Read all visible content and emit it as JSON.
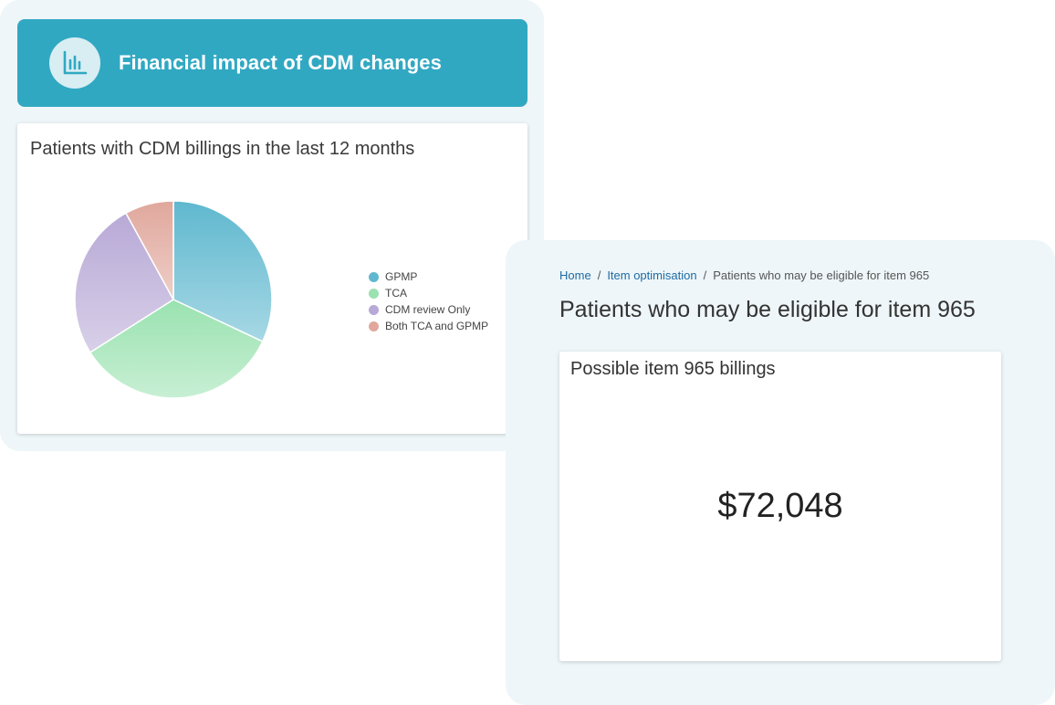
{
  "banner": {
    "title": "Financial impact of CDM changes",
    "icon": "bar-chart-icon",
    "color": "#31a8c2"
  },
  "pie_card": {
    "title": "Patients with CDM billings in the last 12 months"
  },
  "chart_data": {
    "type": "pie",
    "title": "Patients with CDM billings in the last 12 months",
    "legend_position": "right",
    "categories": [
      "GPMP",
      "TCA",
      "CDM review Only",
      "Both TCA and GPMP"
    ],
    "values": [
      32,
      34,
      26,
      8
    ],
    "colors": [
      "#5fb8cf",
      "#9ae2b0",
      "#b8a9d6",
      "#e0a79c"
    ]
  },
  "breadcrumb": {
    "home": "Home",
    "item_optimisation": "Item optimisation",
    "current": "Patients who may be eligible for item 965",
    "separator": "/"
  },
  "page": {
    "title": "Patients who may be eligible for item 965"
  },
  "value_card": {
    "title": "Possible item 965 billings",
    "value": "$72,048"
  }
}
